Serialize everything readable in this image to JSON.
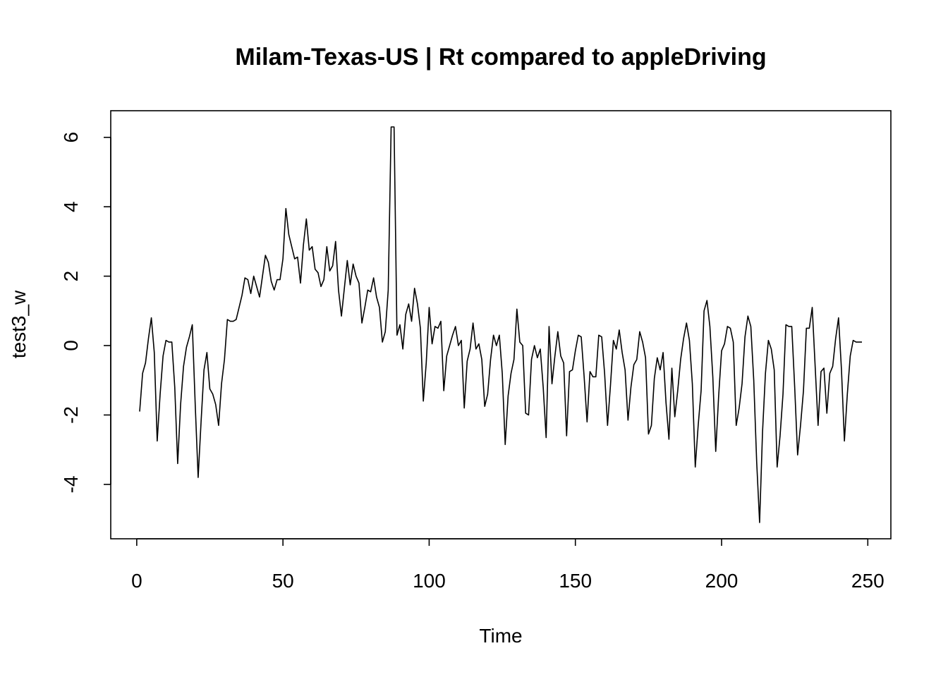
{
  "chart_data": {
    "type": "line",
    "title": "Milam-Texas-US | Rt compared to appleDriving",
    "xlabel": "Time",
    "ylabel": "test3_w",
    "xlim": [
      1,
      248
    ],
    "ylim": [
      -5.1,
      6.3
    ],
    "x_ticks": [
      0,
      50,
      100,
      150,
      200,
      250
    ],
    "x_tick_labels": [
      "0",
      "50",
      "100",
      "150",
      "200",
      "250"
    ],
    "y_ticks": [
      -4,
      -2,
      0,
      2,
      4,
      6
    ],
    "y_tick_labels": [
      "-4",
      "-2",
      "0",
      "2",
      "4",
      "6"
    ],
    "grid": false,
    "legend": "none",
    "line_color": "#000000",
    "series": [
      {
        "x_start": 1,
        "x_step": 1,
        "values": [
          -1.9,
          -0.8,
          -0.5,
          0.2,
          0.8,
          -0.2,
          -2.75,
          -1.4,
          -0.3,
          0.15,
          0.1,
          0.1,
          -1.2,
          -3.4,
          -1.7,
          -0.6,
          -0.05,
          0.25,
          0.6,
          -1.7,
          -3.8,
          -2.2,
          -0.7,
          -0.2,
          -1.25,
          -1.4,
          -1.7,
          -2.3,
          -1.1,
          -0.4,
          0.75,
          0.7,
          0.7,
          0.75,
          1.1,
          1.45,
          1.95,
          1.9,
          1.5,
          2.0,
          1.7,
          1.4,
          2.0,
          2.6,
          2.4,
          1.85,
          1.6,
          1.9,
          1.9,
          2.5,
          3.95,
          3.2,
          2.85,
          2.5,
          2.55,
          1.8,
          2.9,
          3.65,
          2.75,
          2.85,
          2.2,
          2.1,
          1.7,
          1.9,
          2.85,
          2.15,
          2.3,
          3.0,
          1.6,
          0.85,
          1.65,
          2.45,
          1.75,
          2.35,
          2.0,
          1.8,
          0.65,
          1.1,
          1.6,
          1.55,
          1.95,
          1.4,
          1.1,
          0.1,
          0.4,
          1.6,
          6.3,
          6.3,
          0.3,
          0.6,
          -0.1,
          0.9,
          1.2,
          0.7,
          1.65,
          1.2,
          0.5,
          -1.6,
          -0.5,
          1.1,
          0.05,
          0.55,
          0.5,
          0.7,
          -1.3,
          -0.3,
          0.0,
          0.3,
          0.55,
          0.0,
          0.15,
          -1.8,
          -0.45,
          -0.1,
          0.65,
          -0.1,
          0.05,
          -0.4,
          -1.75,
          -1.4,
          -0.4,
          0.3,
          0.0,
          0.3,
          -0.8,
          -2.85,
          -1.45,
          -0.8,
          -0.4,
          1.05,
          0.1,
          0.0,
          -1.95,
          -2.0,
          -0.4,
          0.0,
          -0.35,
          -0.1,
          -1.2,
          -2.65,
          0.55,
          -1.1,
          -0.3,
          0.4,
          -0.3,
          -0.5,
          -2.6,
          -0.75,
          -0.7,
          -0.15,
          0.3,
          0.25,
          -0.9,
          -2.2,
          -0.75,
          -0.9,
          -0.9,
          0.3,
          0.25,
          -0.8,
          -2.3,
          -1.15,
          0.15,
          -0.1,
          0.45,
          -0.2,
          -0.7,
          -2.15,
          -1.2,
          -0.55,
          -0.4,
          0.4,
          0.1,
          -0.35,
          -2.55,
          -2.3,
          -0.95,
          -0.35,
          -0.7,
          -0.2,
          -1.65,
          -2.7,
          -0.65,
          -2.05,
          -1.3,
          -0.4,
          0.2,
          0.65,
          0.15,
          -1.1,
          -3.5,
          -2.3,
          -1.3,
          1.0,
          1.3,
          0.55,
          -0.9,
          -3.05,
          -1.45,
          -0.15,
          0.05,
          0.55,
          0.5,
          0.1,
          -2.3,
          -1.8,
          -1.1,
          0.25,
          0.85,
          0.55,
          -1.0,
          -3.35,
          -5.1,
          -2.5,
          -0.8,
          0.15,
          -0.1,
          -0.7,
          -3.5,
          -2.6,
          -1.4,
          0.6,
          0.55,
          0.55,
          -1.2,
          -3.15,
          -2.3,
          -1.3,
          0.5,
          0.5,
          1.1,
          -0.6,
          -2.3,
          -0.75,
          -0.65,
          -1.95,
          -0.8,
          -0.6,
          0.2,
          0.8,
          -0.7,
          -2.75,
          -1.4,
          -0.3,
          0.15,
          0.1,
          0.1,
          0.1
        ]
      }
    ]
  }
}
